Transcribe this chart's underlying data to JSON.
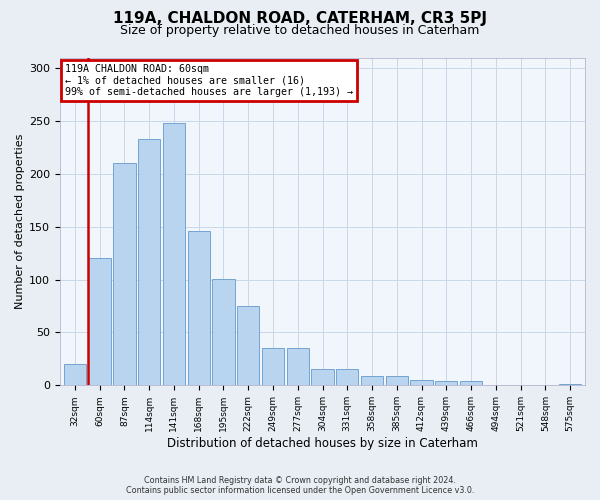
{
  "title": "119A, CHALDON ROAD, CATERHAM, CR3 5PJ",
  "subtitle": "Size of property relative to detached houses in Caterham",
  "xlabel": "Distribution of detached houses by size in Caterham",
  "ylabel": "Number of detached properties",
  "bar_labels": [
    "32sqm",
    "60sqm",
    "87sqm",
    "114sqm",
    "141sqm",
    "168sqm",
    "195sqm",
    "222sqm",
    "249sqm",
    "277sqm",
    "304sqm",
    "331sqm",
    "358sqm",
    "385sqm",
    "412sqm",
    "439sqm",
    "466sqm",
    "494sqm",
    "521sqm",
    "548sqm",
    "575sqm"
  ],
  "bar_heights": [
    20,
    120,
    210,
    233,
    248,
    146,
    101,
    75,
    35,
    35,
    15,
    15,
    9,
    9,
    5,
    4,
    4,
    0,
    0,
    0,
    1
  ],
  "bar_color": "#b8d4ee",
  "bar_edge_color": "#6699cc",
  "property_line_index": 1,
  "property_line_color": "#cc0000",
  "ylim": [
    0,
    310
  ],
  "yticks": [
    0,
    50,
    100,
    150,
    200,
    250,
    300
  ],
  "annotation_line1": "119A CHALDON ROAD: 60sqm",
  "annotation_line2": "← 1% of detached houses are smaller (16)",
  "annotation_line3": "99% of semi-detached houses are larger (1,193) →",
  "annotation_box_edgecolor": "#cc0000",
  "footer_line1": "Contains HM Land Registry data © Crown copyright and database right 2024.",
  "footer_line2": "Contains public sector information licensed under the Open Government Licence v3.0.",
  "fig_bg_color": "#e8eef4",
  "plot_bg_color": "#f0f6fc",
  "grid_color": "#c8d8e8",
  "title_fontsize": 11,
  "subtitle_fontsize": 9
}
